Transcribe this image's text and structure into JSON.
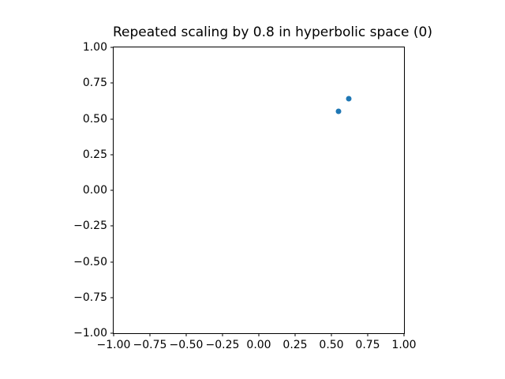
{
  "figure": {
    "background_color": "#ffffff",
    "spine_color": "#000000",
    "text_color": "#000000"
  },
  "chart_data": {
    "type": "scatter",
    "title": "Repeated scaling by 0.8 in hyperbolic space (0)",
    "xlabel": "",
    "ylabel": "",
    "xlim": [
      -1.0,
      1.0
    ],
    "ylim": [
      -1.0,
      1.0
    ],
    "grid": false,
    "legend": null,
    "xticks": {
      "values": [
        -1.0,
        -0.75,
        -0.5,
        -0.25,
        0.0,
        0.25,
        0.5,
        0.75,
        1.0
      ],
      "labels": [
        "−1.00",
        "−0.75",
        "−0.50",
        "−0.25",
        "0.00",
        "0.25",
        "0.50",
        "0.75",
        "1.00"
      ]
    },
    "yticks": {
      "values": [
        1.0,
        0.75,
        0.5,
        0.25,
        0.0,
        -0.25,
        -0.5,
        -0.75,
        -1.0
      ],
      "labels": [
        "1.00",
        "0.75",
        "0.50",
        "0.25",
        "0.00",
        "−0.25",
        "−0.50",
        "−0.75",
        "−1.00"
      ]
    },
    "series": [
      {
        "name": "points",
        "marker_color": "#1f77b4",
        "points": [
          {
            "x": 0.55,
            "y": 0.55
          },
          {
            "x": 0.62,
            "y": 0.64
          }
        ]
      }
    ]
  }
}
